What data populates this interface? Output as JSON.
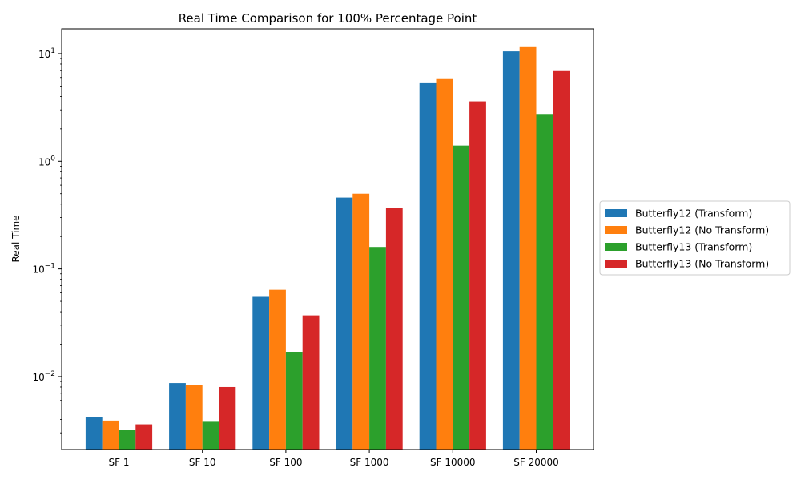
{
  "chart_data": {
    "type": "bar",
    "title": "Real Time Comparison for 100% Percentage Point",
    "xlabel": "",
    "ylabel": "Real Time",
    "yscale": "log",
    "ylim": [
      0.0021,
      17
    ],
    "yticks": [
      {
        "value": 0.01,
        "base": "10",
        "exp": "−2"
      },
      {
        "value": 0.1,
        "base": "10",
        "exp": "−1"
      },
      {
        "value": 1,
        "base": "10",
        "exp": "0"
      },
      {
        "value": 10,
        "base": "10",
        "exp": "1"
      }
    ],
    "categories": [
      "SF 1",
      "SF 10",
      "SF 100",
      "SF 1000",
      "SF 10000",
      "SF 20000"
    ],
    "series": [
      {
        "name": "Butterfly12 (Transform)",
        "color": "#1f77b4",
        "values": [
          0.0042,
          0.0087,
          0.055,
          0.46,
          5.4,
          10.5
        ]
      },
      {
        "name": "Butterfly12 (No Transform)",
        "color": "#ff7f0e",
        "values": [
          0.0039,
          0.0084,
          0.064,
          0.5,
          5.9,
          11.5
        ]
      },
      {
        "name": "Butterfly13 (Transform)",
        "color": "#2ca02c",
        "values": [
          0.0032,
          0.0038,
          0.017,
          0.16,
          1.4,
          2.75
        ]
      },
      {
        "name": "Butterfly13 (No Transform)",
        "color": "#d62728",
        "values": [
          0.0036,
          0.008,
          0.037,
          0.37,
          3.6,
          7.0
        ]
      }
    ],
    "legend": "outside-right",
    "grid": false
  }
}
